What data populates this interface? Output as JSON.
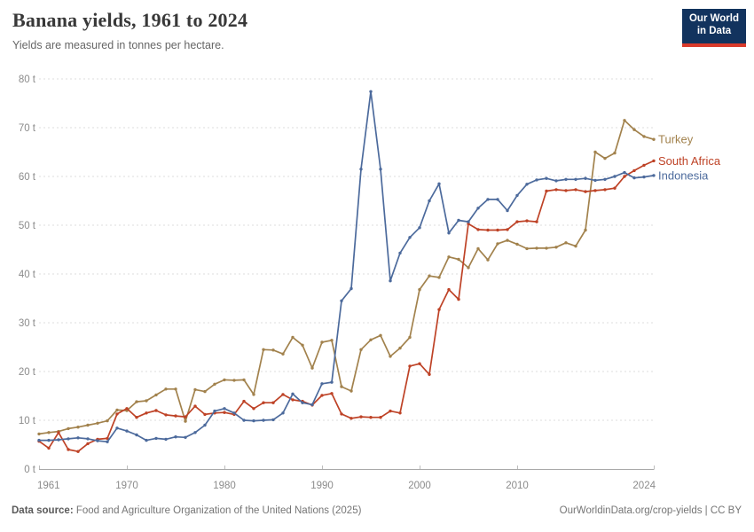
{
  "header": {
    "title": "Banana yields, 1961 to 2024",
    "subtitle": "Yields are measured in tonnes per hectare."
  },
  "logo": {
    "line1": "Our World",
    "line2": "in Data"
  },
  "chart_data": {
    "type": "line",
    "title": "Banana yields, 1961 to 2024",
    "ylabel": "tonnes per hectare",
    "unit_suffix": " t",
    "x_start": 1961,
    "x_end": 2024,
    "ylim": [
      0,
      80
    ],
    "yticks": [
      0,
      10,
      20,
      30,
      40,
      50,
      60,
      70,
      80
    ],
    "xticks": [
      1961,
      1970,
      1980,
      1990,
      2000,
      2010,
      2024
    ],
    "grid": "horizontal-dashed",
    "legend_position": "right-of-line-ends",
    "series": [
      {
        "name": "Turkey",
        "color": "#A2824D",
        "values": [
          7.2,
          7.5,
          7.7,
          8.3,
          8.6,
          9.0,
          9.4,
          9.9,
          12.1,
          12.0,
          13.8,
          14.0,
          15.2,
          16.4,
          16.4,
          9.8,
          16.3,
          15.9,
          17.4,
          18.3,
          18.2,
          18.3,
          15.3,
          24.5,
          24.4,
          23.6,
          27.0,
          25.4,
          20.7,
          26.0,
          26.4,
          16.9,
          16.0,
          24.5,
          26.5,
          27.4,
          23.1,
          24.8,
          27.0,
          36.8,
          39.6,
          39.3,
          43.5,
          43.0,
          41.3,
          45.2,
          42.9,
          46.2,
          46.9,
          46.1,
          45.2,
          45.3,
          45.3,
          45.5,
          46.4,
          45.7,
          49.0,
          65.0,
          63.7,
          64.8,
          71.5,
          69.6,
          68.2,
          67.6
        ]
      },
      {
        "name": "South Africa",
        "color": "#BE4226",
        "values": [
          5.7,
          4.3,
          7.5,
          4.0,
          3.6,
          5.2,
          6.1,
          6.3,
          11.3,
          12.4,
          10.6,
          11.5,
          12.0,
          11.1,
          10.9,
          10.7,
          12.9,
          11.2,
          11.5,
          11.6,
          11.2,
          13.9,
          12.4,
          13.6,
          13.6,
          15.3,
          14.2,
          13.9,
          13.1,
          15.1,
          15.5,
          11.3,
          10.4,
          10.7,
          10.6,
          10.6,
          11.9,
          11.5,
          21.1,
          21.6,
          19.4,
          32.7,
          36.8,
          34.8,
          50.3,
          49.1,
          49.0,
          49.0,
          49.1,
          50.7,
          50.9,
          50.7,
          57.0,
          57.3,
          57.1,
          57.3,
          56.9,
          57.1,
          57.3,
          57.6,
          60.0,
          61.2,
          62.3,
          63.2
        ]
      },
      {
        "name": "Indonesia",
        "color": "#4C6A9C",
        "values": [
          5.9,
          5.9,
          6.0,
          6.2,
          6.4,
          6.2,
          5.8,
          5.6,
          8.4,
          7.8,
          7.0,
          5.9,
          6.3,
          6.1,
          6.6,
          6.5,
          7.5,
          9.0,
          11.9,
          12.4,
          11.5,
          10.0,
          9.9,
          10.0,
          10.1,
          11.5,
          15.4,
          13.6,
          13.2,
          17.5,
          17.8,
          34.5,
          37.0,
          61.5,
          77.4,
          61.5,
          38.6,
          44.3,
          47.5,
          49.5,
          55.0,
          58.5,
          48.4,
          51.0,
          50.7,
          53.5,
          55.3,
          55.3,
          53.0,
          56.1,
          58.4,
          59.3,
          59.6,
          59.1,
          59.4,
          59.4,
          59.6,
          59.2,
          59.4,
          60.0,
          60.8,
          59.7,
          59.9,
          60.2
        ]
      }
    ]
  },
  "footer": {
    "source_label": "Data source:",
    "source_text": " Food and Agriculture Organization of the United Nations (2025)",
    "credit": "OurWorldinData.org/crop-yields | CC BY"
  }
}
